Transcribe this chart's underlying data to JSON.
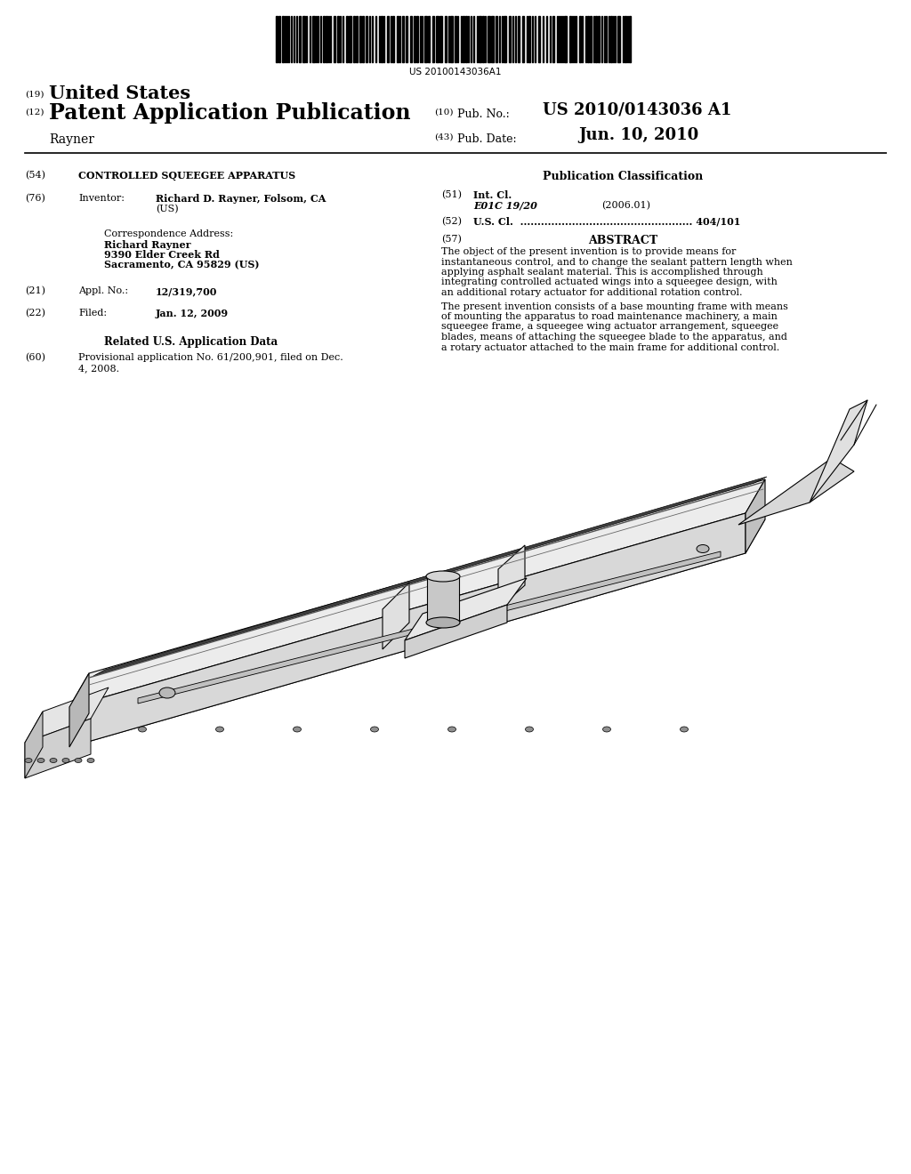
{
  "background_color": "#ffffff",
  "barcode_text": "US 20100143036A1",
  "header_19": "(19)",
  "header_19_text": "United States",
  "header_12": "(12)",
  "header_12_text": "Patent Application Publication",
  "inventor_name": "Rayner",
  "pub_no_label": "(10)  Pub. No.:",
  "pub_no_value": "US 2010/0143036 A1",
  "pub_date_label": "(43)  Pub. Date:",
  "pub_date_value": "Jun. 10, 2010",
  "field54_label": "(54)",
  "field54_text": "CONTROLLED SQUEEGEE APPARATUS",
  "pub_class_title": "Publication Classification",
  "field51_label": "(51)",
  "field51_title": "Int. Cl.",
  "field51_class": "E01C 19/20",
  "field51_year": "(2006.01)",
  "field52_label": "(52)",
  "field52_text": "U.S. Cl.  .................................................. 404/101",
  "field57_label": "(57)",
  "field57_title": "ABSTRACT",
  "abstract_para1": "The object of the present invention is to provide means for instantaneous control, and to change the sealant pattern length when applying asphalt sealant material. This is accomplished through integrating controlled actuated wings into a squeegee design, with an additional rotary actuator for additional rotation control.",
  "abstract_para2": "The present invention consists of a base mounting frame with means of mounting the apparatus to road maintenance machinery, a main squeegee frame, a squeegee wing actuator arrangement, squeegee blades, means of attaching the squeegee blade to the apparatus, and a rotary actuator attached to the main frame for additional control.",
  "field76_label": "(76)",
  "field76_title": "Inventor:",
  "field76_inventor": "Richard D. Rayner",
  "field76_city": ", Folsom, CA",
  "field76_country": "(US)",
  "corr_label": "Correspondence Address:",
  "corr_name": "Richard Rayner",
  "corr_addr1": "9390 Elder Creek Rd",
  "corr_addr2": "Sacramento, CA 95829 (US)",
  "field21_label": "(21)",
  "field21_title": "Appl. No.:",
  "field21_value": "12/319,700",
  "field22_label": "(22)",
  "field22_title": "Filed:",
  "field22_value": "Jan. 12, 2009",
  "related_title": "Related U.S. Application Data",
  "field60_label": "(60)",
  "field60_line1": "Provisional application No. 61/200,901, filed on Dec.",
  "field60_line2": "4, 2008."
}
